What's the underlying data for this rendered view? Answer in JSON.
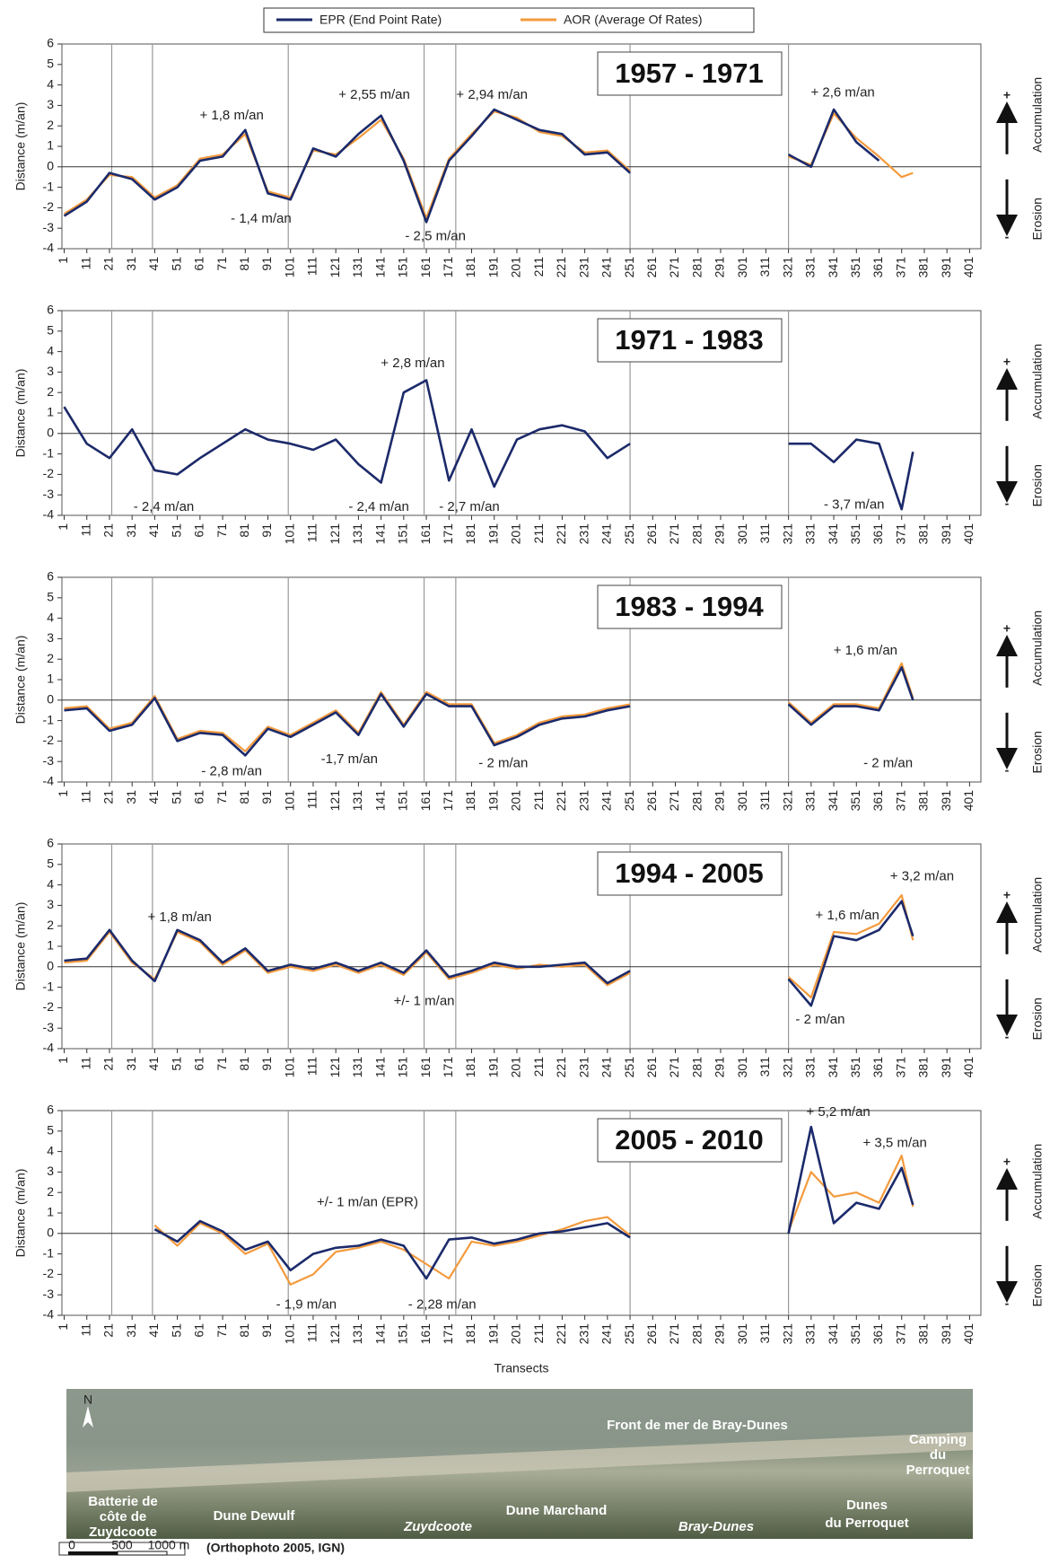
{
  "chart_data": [
    {
      "type": "line",
      "title": "1957 - 1971",
      "ylabel": "Distance (m/an)",
      "ylim": [
        -4,
        6
      ],
      "yticks": [
        -4,
        -3,
        -2,
        -1,
        0,
        1,
        2,
        3,
        4,
        5,
        6
      ],
      "xlim": [
        0,
        406
      ],
      "xticks": [
        1,
        11,
        21,
        31,
        41,
        51,
        61,
        71,
        81,
        91,
        101,
        111,
        121,
        131,
        141,
        151,
        161,
        171,
        181,
        191,
        201,
        211,
        221,
        231,
        241,
        251,
        261,
        271,
        281,
        291,
        301,
        311,
        321,
        331,
        341,
        351,
        361,
        371,
        381,
        391,
        401
      ],
      "section_lines": [
        22,
        40,
        100,
        160,
        174,
        251,
        321
      ],
      "x": [
        1,
        11,
        21,
        31,
        41,
        51,
        61,
        71,
        81,
        91,
        101,
        111,
        121,
        131,
        141,
        151,
        161,
        171,
        181,
        191,
        201,
        211,
        221,
        231,
        241,
        251,
        291,
        321,
        331,
        341,
        351,
        361,
        371,
        376
      ],
      "series": [
        {
          "name": "EPR (End Point Rate)",
          "color": "#1b2a6b",
          "values": [
            -2.4,
            -1.7,
            -0.3,
            -0.6,
            -1.6,
            -1,
            0.3,
            0.5,
            1.8,
            -1.3,
            -1.6,
            0.9,
            0.5,
            1.6,
            2.5,
            0.3,
            -2.7,
            0.3,
            1.5,
            2.8,
            2.3,
            1.8,
            1.6,
            0.6,
            0.7,
            -0.3,
            null,
            0.6,
            0,
            2.8,
            1.2,
            0.3,
            null,
            null
          ]
        },
        {
          "name": "AOR (Average Of Rates)",
          "color": "#f39a3c",
          "values": [
            -2.3,
            -1.6,
            -0.4,
            -0.5,
            -1.5,
            -0.9,
            0.4,
            0.6,
            1.6,
            -1.2,
            -1.5,
            0.8,
            0.6,
            1.4,
            2.3,
            0.4,
            -2.5,
            0.4,
            1.6,
            2.7,
            2.4,
            1.7,
            1.5,
            0.7,
            0.8,
            -0.2,
            null,
            0.5,
            0.1,
            2.6,
            1.4,
            0.5,
            -0.5,
            -0.3
          ]
        }
      ],
      "annotations": [
        {
          "text": "+ 1,8 m/an",
          "color": "#2e9e4f"
        },
        {
          "text": "+ 2,55 m/an",
          "color": "#2e9e4f"
        },
        {
          "text": "+ 2,94 m/an",
          "color": "#2e9e4f"
        },
        {
          "text": "+ 2,6 m/an",
          "color": "#2e9e4f"
        },
        {
          "text": "- 1,4 m/an",
          "color": "#e8322b"
        },
        {
          "text": "- 2,5 m/an",
          "color": "#e8322b"
        }
      ],
      "side": {
        "plus": "+",
        "up": "Accumulation",
        "down": "Erosion",
        "minus": "-"
      }
    },
    {
      "type": "line",
      "title": "1971 - 1983",
      "ylabel": "Distance (m/an)",
      "ylim": [
        -4,
        6
      ],
      "yticks": [
        -4,
        -3,
        -2,
        -1,
        0,
        1,
        2,
        3,
        4,
        5,
        6
      ],
      "xlim": [
        0,
        406
      ],
      "xticks": [
        1,
        11,
        21,
        31,
        41,
        51,
        61,
        71,
        81,
        91,
        101,
        111,
        121,
        131,
        141,
        151,
        161,
        171,
        181,
        191,
        201,
        211,
        221,
        231,
        241,
        251,
        261,
        271,
        281,
        291,
        301,
        311,
        321,
        331,
        341,
        351,
        361,
        371,
        381,
        391,
        401
      ],
      "section_lines": [
        22,
        40,
        100,
        160,
        174,
        251,
        321
      ],
      "x": [
        1,
        11,
        21,
        31,
        41,
        51,
        61,
        71,
        81,
        91,
        101,
        111,
        121,
        131,
        141,
        151,
        161,
        171,
        181,
        191,
        201,
        211,
        221,
        231,
        241,
        251,
        291,
        321,
        331,
        341,
        351,
        361,
        371,
        376
      ],
      "series": [
        {
          "name": "EPR (End Point Rate)",
          "color": "#1b2a6b",
          "values": [
            1.3,
            -0.5,
            -1.2,
            0.2,
            -1.8,
            -2,
            -1.2,
            -0.5,
            0.2,
            -0.3,
            -0.5,
            -0.8,
            -0.3,
            -1.5,
            -2.4,
            2,
            2.6,
            -2.3,
            0.2,
            -2.6,
            -0.3,
            0.2,
            0.4,
            0.1,
            -1.2,
            -0.5,
            null,
            -0.5,
            -0.5,
            -1.4,
            -0.3,
            -0.5,
            -3.7,
            -0.9
          ]
        },
        {
          "name": "AOR (Average Of Rates)",
          "color": "#f39a3c",
          "values": [
            1.3,
            -0.5,
            -1.2,
            0.2,
            -1.8,
            -2,
            -1.2,
            -0.5,
            0.2,
            -0.3,
            -0.5,
            -0.8,
            -0.3,
            -1.5,
            -2.4,
            2,
            2.6,
            -2.3,
            0.2,
            -2.6,
            -0.3,
            0.2,
            0.4,
            0.1,
            -1.2,
            -0.5,
            null,
            -0.5,
            -0.5,
            -1.4,
            -0.3,
            -0.5,
            -3.7,
            -0.9
          ]
        }
      ],
      "annotations": [
        {
          "text": "+ 2,8 m/an",
          "color": "#2e9e4f"
        },
        {
          "text": "- 2,4 m/an",
          "color": "#e8322b"
        },
        {
          "text": "- 2,4 m/an",
          "color": "#e8322b"
        },
        {
          "text": "- 2,7 m/an",
          "color": "#e8322b"
        },
        {
          "text": "- 3,7 m/an",
          "color": "#e8322b"
        }
      ],
      "side": {
        "plus": "+",
        "up": "Accumulation",
        "down": "Erosion",
        "minus": "-"
      }
    },
    {
      "type": "line",
      "title": "1983 - 1994",
      "ylabel": "Distance (m/an)",
      "ylim": [
        -4,
        6
      ],
      "yticks": [
        -4,
        -3,
        -2,
        -1,
        0,
        1,
        2,
        3,
        4,
        5,
        6
      ],
      "xlim": [
        0,
        406
      ],
      "xticks": [
        1,
        11,
        21,
        31,
        41,
        51,
        61,
        71,
        81,
        91,
        101,
        111,
        121,
        131,
        141,
        151,
        161,
        171,
        181,
        191,
        201,
        211,
        221,
        231,
        241,
        251,
        261,
        271,
        281,
        291,
        301,
        311,
        321,
        331,
        341,
        351,
        361,
        371,
        381,
        391,
        401
      ],
      "section_lines": [
        22,
        40,
        100,
        160,
        174,
        251,
        321
      ],
      "x": [
        1,
        11,
        21,
        31,
        41,
        51,
        61,
        71,
        81,
        91,
        101,
        111,
        121,
        131,
        141,
        151,
        161,
        171,
        181,
        191,
        201,
        211,
        221,
        231,
        241,
        251,
        291,
        321,
        331,
        341,
        351,
        361,
        371,
        376
      ],
      "series": [
        {
          "name": "EPR (End Point Rate)",
          "color": "#1b2a6b",
          "values": [
            -0.5,
            -0.4,
            -1.5,
            -1.2,
            0.1,
            -2,
            -1.6,
            -1.7,
            -2.7,
            -1.4,
            -1.8,
            -1.2,
            -0.6,
            -1.7,
            0.3,
            -1.3,
            0.3,
            -0.3,
            -0.3,
            -2.2,
            -1.8,
            -1.2,
            -0.9,
            -0.8,
            -0.5,
            -0.3,
            null,
            -0.2,
            -1.2,
            -0.3,
            -0.3,
            -0.5,
            1.6,
            0
          ]
        },
        {
          "name": "AOR (Average Of Rates)",
          "color": "#f39a3c",
          "values": [
            -0.4,
            -0.3,
            -1.4,
            -1.1,
            0.2,
            -1.9,
            -1.5,
            -1.6,
            -2.5,
            -1.3,
            -1.7,
            -1.1,
            -0.5,
            -1.6,
            0.4,
            -1.2,
            0.4,
            -0.2,
            -0.2,
            -2.1,
            -1.7,
            -1.1,
            -0.8,
            -0.7,
            -0.4,
            -0.2,
            null,
            -0.1,
            -1.1,
            -0.2,
            -0.2,
            -0.4,
            1.8,
            0.1
          ]
        }
      ],
      "annotations": [
        {
          "text": "+ 1,6 m/an",
          "color": "#2e9e4f"
        },
        {
          "text": "- 2,8 m/an",
          "color": "#e8322b"
        },
        {
          "text": "-1,7 m/an",
          "color": "#e8322b"
        },
        {
          "text": "- 2 m/an",
          "color": "#e8322b"
        },
        {
          "text": "- 2 m/an",
          "color": "#e8322b"
        }
      ],
      "side": {
        "plus": "+",
        "up": "Accumulation",
        "down": "Erosion",
        "minus": "-"
      }
    },
    {
      "type": "line",
      "title": "1994 - 2005",
      "ylabel": "Distance (m/an)",
      "ylim": [
        -4,
        6
      ],
      "yticks": [
        -4,
        -3,
        -2,
        -1,
        0,
        1,
        2,
        3,
        4,
        5,
        6
      ],
      "xlim": [
        0,
        406
      ],
      "xticks": [
        1,
        11,
        21,
        31,
        41,
        51,
        61,
        71,
        81,
        91,
        101,
        111,
        121,
        131,
        141,
        151,
        161,
        171,
        181,
        191,
        201,
        211,
        221,
        231,
        241,
        251,
        261,
        271,
        281,
        291,
        301,
        311,
        321,
        331,
        341,
        351,
        361,
        371,
        381,
        391,
        401
      ],
      "section_lines": [
        22,
        40,
        100,
        160,
        174,
        251,
        321
      ],
      "x": [
        1,
        11,
        21,
        31,
        41,
        51,
        61,
        71,
        81,
        91,
        101,
        111,
        121,
        131,
        141,
        151,
        161,
        171,
        181,
        191,
        201,
        211,
        221,
        231,
        241,
        251,
        291,
        321,
        331,
        341,
        351,
        361,
        371,
        376
      ],
      "series": [
        {
          "name": "EPR (End Point Rate)",
          "color": "#1b2a6b",
          "values": [
            0.3,
            0.4,
            1.8,
            0.3,
            -0.7,
            1.8,
            1.3,
            0.2,
            0.9,
            -0.2,
            0.1,
            -0.1,
            0.2,
            -0.2,
            0.2,
            -0.3,
            0.8,
            -0.5,
            -0.2,
            0.2,
            0,
            0,
            0.1,
            0.2,
            -0.8,
            -0.2,
            null,
            -0.6,
            -1.9,
            1.5,
            1.3,
            1.8,
            3.2,
            1.5
          ]
        },
        {
          "name": "AOR (Average Of Rates)",
          "color": "#f39a3c",
          "values": [
            0.2,
            0.3,
            1.7,
            0.2,
            -0.6,
            1.7,
            1.2,
            0.1,
            0.8,
            -0.3,
            0,
            -0.2,
            0.1,
            -0.3,
            0.1,
            -0.4,
            0.7,
            -0.6,
            -0.3,
            0.1,
            -0.1,
            0.1,
            0,
            0.1,
            -0.9,
            -0.3,
            null,
            -0.5,
            -1.5,
            1.7,
            1.6,
            2.1,
            3.5,
            1.3
          ]
        }
      ],
      "annotations": [
        {
          "text": "+ 1,8 m/an",
          "color": "#2e9e4f"
        },
        {
          "text": "+ 3,2 m/an",
          "color": "#2e9e4f"
        },
        {
          "text": "+ 1,6 m/an",
          "color": "#2e9e4f"
        },
        {
          "text": "- 2 m/an",
          "color": "#e8322b"
        },
        {
          "text": "+/- 1 m/an",
          "color": "#222222"
        }
      ],
      "side": {
        "plus": "+",
        "up": "Accumulation",
        "down": "Erosion",
        "minus": "-"
      }
    },
    {
      "type": "line",
      "title": "2005 - 2010",
      "ylabel": "Distance (m/an)",
      "xlabel": "Transects",
      "ylim": [
        -4,
        6
      ],
      "yticks": [
        -4,
        -3,
        -2,
        -1,
        0,
        1,
        2,
        3,
        4,
        5,
        6
      ],
      "xlim": [
        0,
        406
      ],
      "xticks": [
        1,
        11,
        21,
        31,
        41,
        51,
        61,
        71,
        81,
        91,
        101,
        111,
        121,
        131,
        141,
        151,
        161,
        171,
        181,
        191,
        201,
        211,
        221,
        231,
        241,
        251,
        261,
        271,
        281,
        291,
        301,
        311,
        321,
        331,
        341,
        351,
        361,
        371,
        381,
        391,
        401
      ],
      "section_lines": [
        22,
        40,
        100,
        160,
        174,
        251,
        321
      ],
      "x": [
        1,
        11,
        21,
        31,
        41,
        51,
        61,
        71,
        81,
        91,
        101,
        111,
        121,
        131,
        141,
        151,
        161,
        171,
        181,
        191,
        201,
        211,
        221,
        231,
        241,
        251,
        291,
        321,
        331,
        341,
        351,
        361,
        371,
        376
      ],
      "series": [
        {
          "name": "EPR (End Point Rate)",
          "color": "#1b2a6b",
          "values": [
            null,
            null,
            null,
            null,
            0.2,
            -0.4,
            0.6,
            0.1,
            -0.8,
            -0.4,
            -1.8,
            -1,
            -0.7,
            -0.6,
            -0.3,
            -0.6,
            -2.2,
            -0.3,
            -0.2,
            -0.5,
            -0.3,
            0,
            0.1,
            0.3,
            0.5,
            -0.2,
            null,
            0,
            5.2,
            0.5,
            1.5,
            1.2,
            3.2,
            1.4
          ]
        },
        {
          "name": "AOR (Average Of Rates)",
          "color": "#f39a3c",
          "values": [
            null,
            null,
            null,
            null,
            0.4,
            -0.6,
            0.5,
            0,
            -1,
            -0.5,
            -2.5,
            -2,
            -0.9,
            -0.7,
            -0.4,
            -0.8,
            -1.5,
            -2.2,
            -0.4,
            -0.6,
            -0.4,
            -0.1,
            0.2,
            0.6,
            0.8,
            -0.1,
            null,
            0.1,
            3,
            1.8,
            2,
            1.5,
            3.8,
            1.3
          ]
        }
      ],
      "annotations": [
        {
          "text": "+ 5,2 m/an",
          "color": "#2e9e4f"
        },
        {
          "text": "+ 3,5 m/an",
          "color": "#2e9e4f"
        },
        {
          "text": "+/- 1 m/an (EPR)",
          "color": "#222222"
        },
        {
          "text": "- 1,9 m/an",
          "color": "#e8322b"
        },
        {
          "text": "- 2,28 m/an",
          "color": "#e8322b"
        }
      ],
      "side": {
        "plus": "+",
        "up": "Accumulation",
        "down": "Erosion",
        "minus": "-"
      }
    }
  ],
  "map": {
    "north": "N",
    "labels": [
      "Batterie de",
      "côte de",
      "Zuydcoote",
      "Dune Dewulf",
      "Zuydcoote",
      "Dune Marchand",
      "Front de mer de Bray-Dunes",
      "Bray-Dunes",
      "Dunes",
      "du Perroquet",
      "Camping",
      "du",
      "Perroquet"
    ],
    "scale": [
      "0",
      "500",
      "1000 m"
    ],
    "source": "(Orthophoto 2005, IGN)"
  }
}
